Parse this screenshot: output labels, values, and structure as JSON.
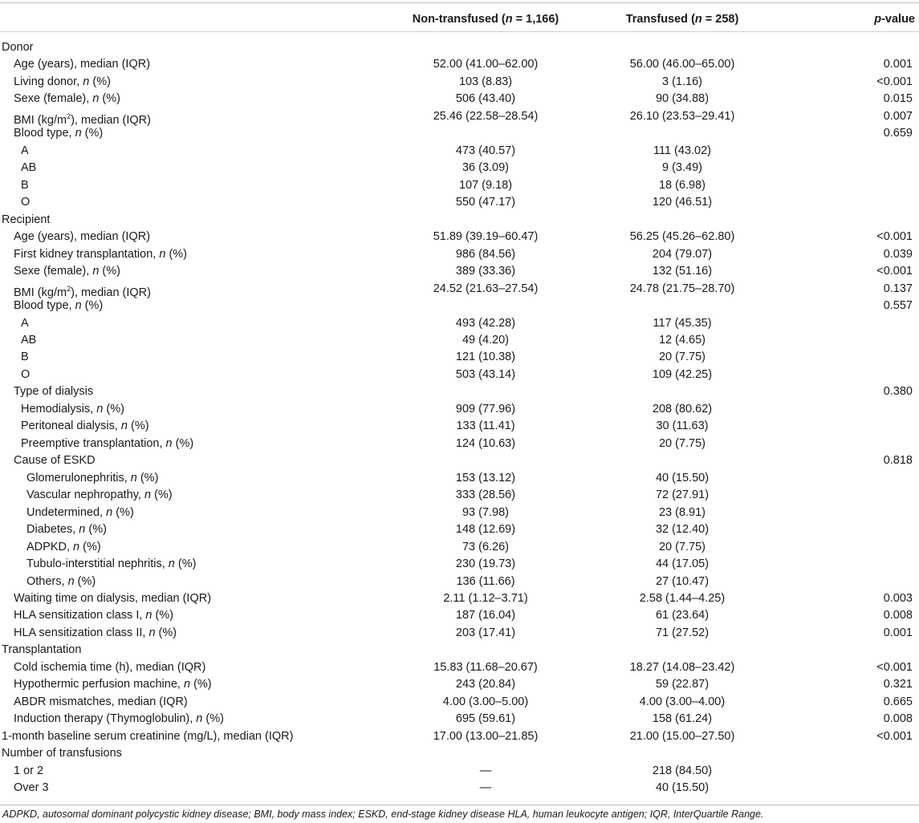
{
  "header": {
    "col_nt": "Non-transfused (n = 1,166)",
    "col_t": "Transfused (n = 258)",
    "col_p": "p-value"
  },
  "rows": [
    {
      "label": "Donor",
      "indent": 0,
      "nt": "",
      "t": "",
      "p": ""
    },
    {
      "label": "Age (years), median (IQR)",
      "indent": 1,
      "nt": "52.00 (41.00–62.00)",
      "t": "56.00 (46.00–65.00)",
      "p": "0.001"
    },
    {
      "label": "Living donor, n (%)",
      "indent": 1,
      "nt": "103 (8.83)",
      "t": "3 (1.16)",
      "p": "<0.001"
    },
    {
      "label": "Sexe (female), n (%)",
      "indent": 1,
      "nt": "506 (43.40)",
      "t": "90 (34.88)",
      "p": "0.015"
    },
    {
      "label": "BMI (kg/m2), median (IQR)",
      "indent": 1,
      "nt": "25.46 (22.58–28.54)",
      "t": "26.10 (23.53–29.41)",
      "p": "0.007"
    },
    {
      "label": "Blood type, n (%)",
      "indent": 1,
      "nt": "",
      "t": "",
      "p": "0.659"
    },
    {
      "label": "A",
      "indent": 2,
      "nt": "473 (40.57)",
      "t": "111 (43.02)",
      "p": ""
    },
    {
      "label": "AB",
      "indent": 2,
      "nt": "36 (3.09)",
      "t": "9 (3.49)",
      "p": ""
    },
    {
      "label": "B",
      "indent": 2,
      "nt": "107 (9.18)",
      "t": "18 (6.98)",
      "p": ""
    },
    {
      "label": "O",
      "indent": 2,
      "nt": "550 (47.17)",
      "t": "120 (46.51)",
      "p": ""
    },
    {
      "label": "Recipient",
      "indent": 0,
      "nt": "",
      "t": "",
      "p": ""
    },
    {
      "label": "Age (years), median (IQR)",
      "indent": 1,
      "nt": "51.89 (39.19–60.47)",
      "t": "56.25 (45.26–62.80)",
      "p": "<0.001"
    },
    {
      "label": "First kidney transplantation, n (%)",
      "indent": 1,
      "nt": "986 (84.56)",
      "t": "204 (79.07)",
      "p": "0.039"
    },
    {
      "label": "Sexe (female), n (%)",
      "indent": 1,
      "nt": "389 (33.36)",
      "t": "132 (51.16)",
      "p": "<0.001"
    },
    {
      "label": "BMI (kg/m2), median (IQR)",
      "indent": 1,
      "nt": "24.52 (21.63–27.54)",
      "t": "24.78 (21.75–28.70)",
      "p": "0.137"
    },
    {
      "label": "Blood type, n (%)",
      "indent": 1,
      "nt": "",
      "t": "",
      "p": "0.557"
    },
    {
      "label": "A",
      "indent": 2,
      "nt": "493 (42.28)",
      "t": "117 (45.35)",
      "p": ""
    },
    {
      "label": "AB",
      "indent": 2,
      "nt": "49 (4.20)",
      "t": "12 (4.65)",
      "p": ""
    },
    {
      "label": "B",
      "indent": 2,
      "nt": "121 (10.38)",
      "t": "20 (7.75)",
      "p": ""
    },
    {
      "label": "O",
      "indent": 2,
      "nt": "503 (43.14)",
      "t": "109 (42.25)",
      "p": ""
    },
    {
      "label": "Type of dialysis",
      "indent": 1,
      "nt": "",
      "t": "",
      "p": "0.380"
    },
    {
      "label": "Hemodialysis, n (%)",
      "indent": 2,
      "nt": "909 (77.96)",
      "t": "208 (80.62)",
      "p": ""
    },
    {
      "label": "Peritoneal dialysis, n (%)",
      "indent": 2,
      "nt": "133 (11.41)",
      "t": "30 (11.63)",
      "p": ""
    },
    {
      "label": "Preemptive transplantation, n (%)",
      "indent": 2,
      "nt": "124 (10.63)",
      "t": "20 (7.75)",
      "p": ""
    },
    {
      "label": "Cause of ESKD",
      "indent": 1,
      "nt": "",
      "t": "",
      "p": "0.818"
    },
    {
      "label": "Glomerulonephritis, n (%)",
      "indent": 3,
      "nt": "153 (13.12)",
      "t": "40 (15.50)",
      "p": ""
    },
    {
      "label": "Vascular nephropathy, n (%)",
      "indent": 3,
      "nt": "333 (28.56)",
      "t": "72 (27.91)",
      "p": ""
    },
    {
      "label": "Undetermined, n (%)",
      "indent": 3,
      "nt": "93 (7.98)",
      "t": "23 (8.91)",
      "p": ""
    },
    {
      "label": "Diabetes, n (%)",
      "indent": 3,
      "nt": "148 (12.69)",
      "t": "32 (12.40)",
      "p": ""
    },
    {
      "label": "ADPKD, n (%)",
      "indent": 3,
      "nt": "73 (6.26)",
      "t": "20 (7.75)",
      "p": ""
    },
    {
      "label": "Tubulo-interstitial nephritis, n (%)",
      "indent": 3,
      "nt": "230 (19.73)",
      "t": "44 (17.05)",
      "p": ""
    },
    {
      "label": "Others, n (%)",
      "indent": 3,
      "nt": "136 (11.66)",
      "t": "27 (10.47)",
      "p": ""
    },
    {
      "label": "Waiting time on dialysis, median (IQR)",
      "indent": 1,
      "nt": "2.11 (1.12–3.71)",
      "t": "2.58 (1.44–4.25)",
      "p": "0.003"
    },
    {
      "label": "HLA sensitization class I, n (%)",
      "indent": 1,
      "nt": "187 (16.04)",
      "t": "61 (23.64)",
      "p": "0.008"
    },
    {
      "label": "HLA sensitization class II, n (%)",
      "indent": 1,
      "nt": "203 (17.41)",
      "t": "71 (27.52)",
      "p": "0.001"
    },
    {
      "label": "Transplantation",
      "indent": 0,
      "nt": "",
      "t": "",
      "p": ""
    },
    {
      "label": "Cold ischemia time (h), median (IQR)",
      "indent": 1,
      "nt": "15.83 (11.68–20.67)",
      "t": "18.27 (14.08–23.42)",
      "p": "<0.001"
    },
    {
      "label": "Hypothermic perfusion machine, n (%)",
      "indent": 1,
      "nt": "243 (20.84)",
      "t": "59 (22.87)",
      "p": "0.321"
    },
    {
      "label": "ABDR mismatches, median (IQR)",
      "indent": 1,
      "nt": "4.00 (3.00–5.00)",
      "t": "4.00 (3.00–4.00)",
      "p": "0.665"
    },
    {
      "label": "Induction therapy (Thymoglobulin), n (%)",
      "indent": 1,
      "nt": "695 (59.61)",
      "t": "158 (61.24)",
      "p": "0.008"
    },
    {
      "label": "1-month baseline serum creatinine (mg/L), median (IQR)",
      "indent": 0,
      "nt": "17.00 (13.00–21.85)",
      "t": "21.00 (15.00–27.50)",
      "p": "<0.001"
    },
    {
      "label": "Number of transfusions",
      "indent": 0,
      "nt": "",
      "t": "",
      "p": ""
    },
    {
      "label": "1 or 2",
      "indent": 1,
      "nt": "—",
      "t": "218 (84.50)",
      "p": ""
    },
    {
      "label": "Over 3",
      "indent": 1,
      "nt": "—",
      "t": "40 (15.50)",
      "p": ""
    }
  ],
  "footnote": "ADPKD, autosomal dominant polycystic kidney disease; BMI, body mass index; ESKD, end-stage kidney disease HLA, human leukocyte antigen; IQR, InterQuartile Range."
}
